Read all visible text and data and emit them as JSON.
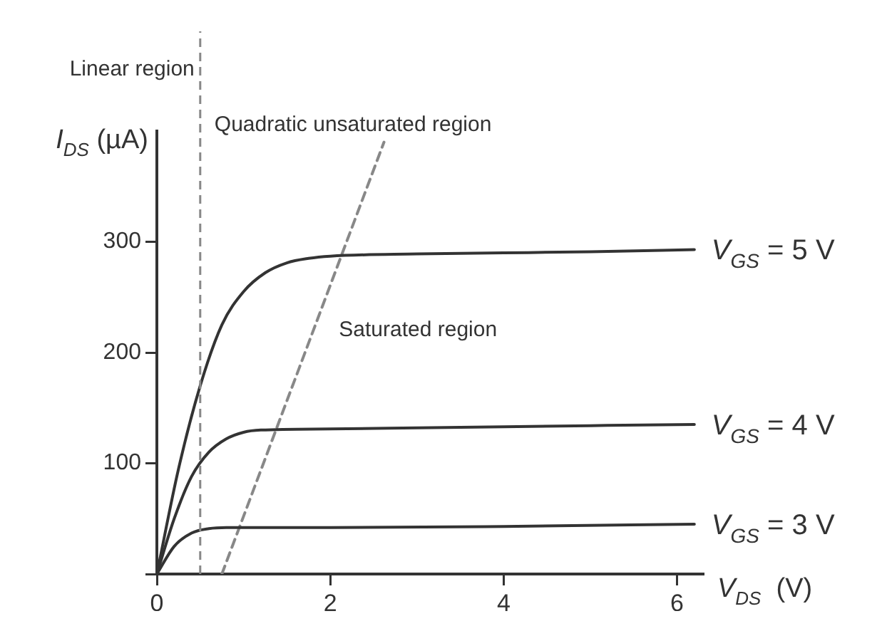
{
  "chart_data": {
    "type": "line",
    "xlabel": "V$_{DS}$  (V)",
    "ylabel": "I$_{DS}$ (µA)",
    "annotations": [
      "Linear region",
      "Quadratic unsaturated region",
      "Saturated region"
    ],
    "xlim": [
      0,
      6.3
    ],
    "ylim": [
      0,
      400
    ],
    "xticks": [
      {
        "value": 0,
        "label": "0"
      },
      2,
      4,
      6
    ],
    "yticks": [
      {
        "value": 0,
        "label": null
      },
      100,
      200,
      300
    ],
    "grid": false,
    "legend": false,
    "marker": "none",
    "line_style": "solid",
    "ref_lines": [
      {
        "axis": "x",
        "value": 0.5,
        "color": "#888888",
        "line_style": "dashed"
      }
    ],
    "series": [
      {
        "name": "V$_{GS}$ = 5 V",
        "color": "#333333",
        "x": [
          0,
          0.25,
          0.5,
          0.75,
          1,
          1.25,
          1.5,
          1.75,
          2,
          3,
          4,
          5,
          6.2
        ],
        "values": [
          0,
          95,
          170,
          225,
          255,
          272,
          281,
          285,
          287,
          289,
          290,
          291,
          293
        ]
      },
      {
        "name": "V$_{GS}$ = 4 V",
        "color": "#333333",
        "x": [
          0,
          0.2,
          0.4,
          0.6,
          0.8,
          1,
          1.2,
          2,
          3,
          4,
          5,
          6.2
        ],
        "values": [
          0,
          50,
          88,
          110,
          122,
          128,
          130,
          131,
          132,
          133,
          134,
          135
        ]
      },
      {
        "name": "V$_{GS}$ = 3 V",
        "color": "#333333",
        "x": [
          0,
          0.2,
          0.4,
          0.6,
          0.8,
          1,
          2,
          4,
          6.2
        ],
        "values": [
          0,
          25,
          37,
          41,
          42,
          42,
          42,
          43,
          45
        ]
      },
      {
        "color": "#888888",
        "line_style": "dashed",
        "x": [
          0.75,
          2.62
        ],
        "values": [
          0,
          390
        ]
      }
    ]
  }
}
